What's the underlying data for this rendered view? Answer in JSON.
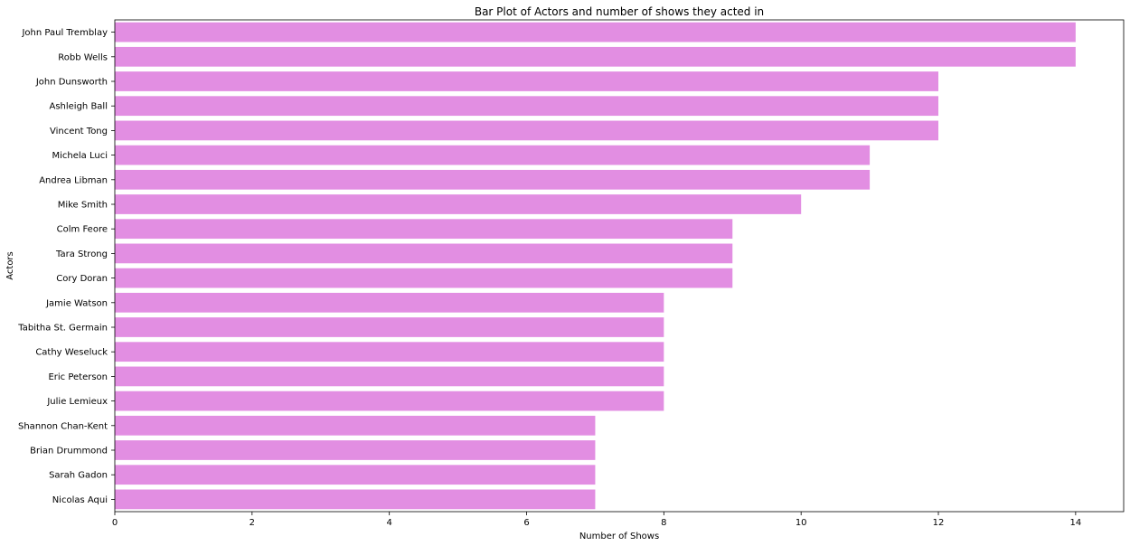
{
  "chart_data": {
    "type": "bar",
    "orientation": "horizontal",
    "title": "Bar Plot of Actors and number of shows they acted in",
    "xlabel": "Number of Shows",
    "ylabel": "Actors",
    "xlim": [
      0,
      14.7
    ],
    "xticks": [
      0,
      2,
      4,
      6,
      8,
      10,
      12,
      14
    ],
    "grid": false,
    "bar_color": "#e28ee2",
    "categories": [
      "John Paul Tremblay",
      "Robb Wells",
      "John Dunsworth",
      "Ashleigh Ball",
      "Vincent Tong",
      "Michela Luci",
      "Andrea Libman",
      "Mike Smith",
      "Colm Feore",
      "Tara Strong",
      "Cory Doran",
      "Jamie Watson",
      "Tabitha St. Germain",
      "Cathy Weseluck",
      "Eric Peterson",
      "Julie Lemieux",
      "Shannon Chan-Kent",
      "Brian Drummond",
      "Sarah Gadon",
      "Nicolas Aqui"
    ],
    "values": [
      14,
      14,
      12,
      12,
      12,
      11,
      11,
      10,
      9,
      9,
      9,
      8,
      8,
      8,
      8,
      8,
      7,
      7,
      7,
      7
    ]
  }
}
